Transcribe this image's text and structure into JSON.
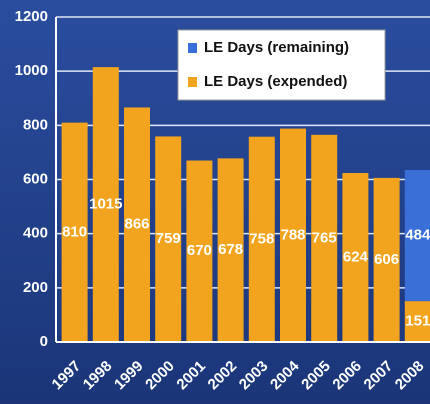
{
  "chart_data": {
    "type": "stacked_bar",
    "categories": [
      "1997",
      "1998",
      "1999",
      "2000",
      "2001",
      "2002",
      "2003",
      "2004",
      "2005",
      "2006",
      "2007",
      "2008"
    ],
    "series": [
      {
        "name": "LE Days (expended)",
        "color": "#f2a41e",
        "values": [
          810,
          1015,
          866,
          759,
          670,
          678,
          758,
          788,
          765,
          624,
          606,
          151
        ]
      },
      {
        "name": "LE Days (remaining)",
        "color": "#3a6fd8",
        "values": [
          null,
          null,
          null,
          null,
          null,
          null,
          null,
          null,
          null,
          null,
          null,
          484
        ]
      }
    ],
    "ylim": [
      0,
      1200
    ],
    "yticks": [
      0,
      200,
      400,
      600,
      800,
      1000,
      1200
    ],
    "grid": true,
    "legend": "top-right"
  }
}
